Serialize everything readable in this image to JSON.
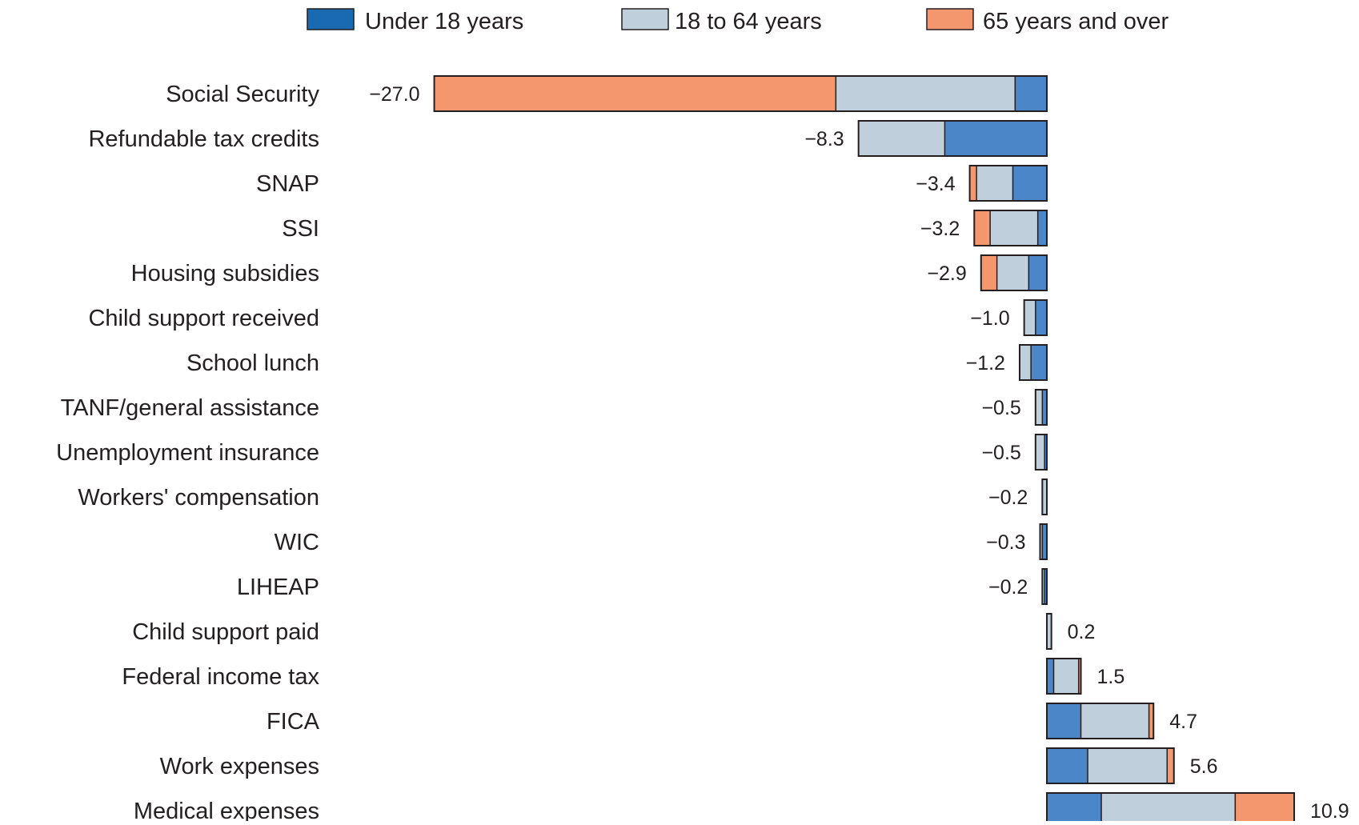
{
  "chart_data": {
    "type": "bar",
    "orientation": "horizontal",
    "stacked": true,
    "title": "",
    "xlabel": "",
    "ylabel": "",
    "xlim": [
      -28,
      11
    ],
    "grid": false,
    "legend_position": "top",
    "series": [
      {
        "name": "Under 18 years",
        "color": "#4a86c8",
        "legend_color": "#1a6ab2"
      },
      {
        "name": "18 to 64 years",
        "color": "#bfd0dc",
        "legend_color": "#bfd0dc"
      },
      {
        "name": "65 years and over",
        "color": "#f4966e",
        "legend_color": "#f4966e"
      }
    ],
    "categories": [
      "Social Security",
      "Refundable tax credits",
      "SNAP",
      "SSI",
      "Housing subsidies",
      "Child support received",
      "School lunch",
      "TANF/general assistance",
      "Unemployment insurance",
      "Workers' compensation",
      "WIC",
      "LIHEAP",
      "Child support paid",
      "Federal income tax",
      "FICA",
      "Work expenses",
      "Medical expenses"
    ],
    "totals": [
      -27.0,
      -8.3,
      -3.4,
      -3.2,
      -2.9,
      -1.0,
      -1.2,
      -0.5,
      -0.5,
      -0.2,
      -0.3,
      -0.2,
      0.2,
      1.5,
      4.7,
      5.6,
      10.9
    ],
    "total_labels": [
      "-27.0",
      "-8.3",
      "-3.4",
      "-3.2",
      "-2.9",
      "-1.0",
      "-1.2",
      "-0.5",
      "-0.5",
      "-0.2",
      "-0.3",
      "-0.2",
      "0.2",
      "1.5",
      "4.7",
      "5.6",
      "10.9"
    ],
    "segments": [
      [
        -1.4,
        -7.9,
        -17.7
      ],
      [
        -4.5,
        -3.8,
        0.0
      ],
      [
        -1.5,
        -1.6,
        -0.3
      ],
      [
        -0.4,
        -2.1,
        -0.7
      ],
      [
        -0.8,
        -1.4,
        -0.7
      ],
      [
        -0.5,
        -0.5,
        0.0
      ],
      [
        -0.7,
        -0.5,
        0.0
      ],
      [
        -0.2,
        -0.3,
        0.0
      ],
      [
        -0.1,
        -0.4,
        0.0
      ],
      [
        0.0,
        -0.2,
        0.0
      ],
      [
        -0.2,
        -0.1,
        0.0
      ],
      [
        -0.1,
        -0.1,
        0.0
      ],
      [
        0.0,
        0.2,
        0.0
      ],
      [
        0.3,
        1.1,
        0.1
      ],
      [
        1.5,
        3.0,
        0.2
      ],
      [
        1.8,
        3.5,
        0.3
      ],
      [
        2.4,
        5.9,
        2.6
      ]
    ]
  }
}
